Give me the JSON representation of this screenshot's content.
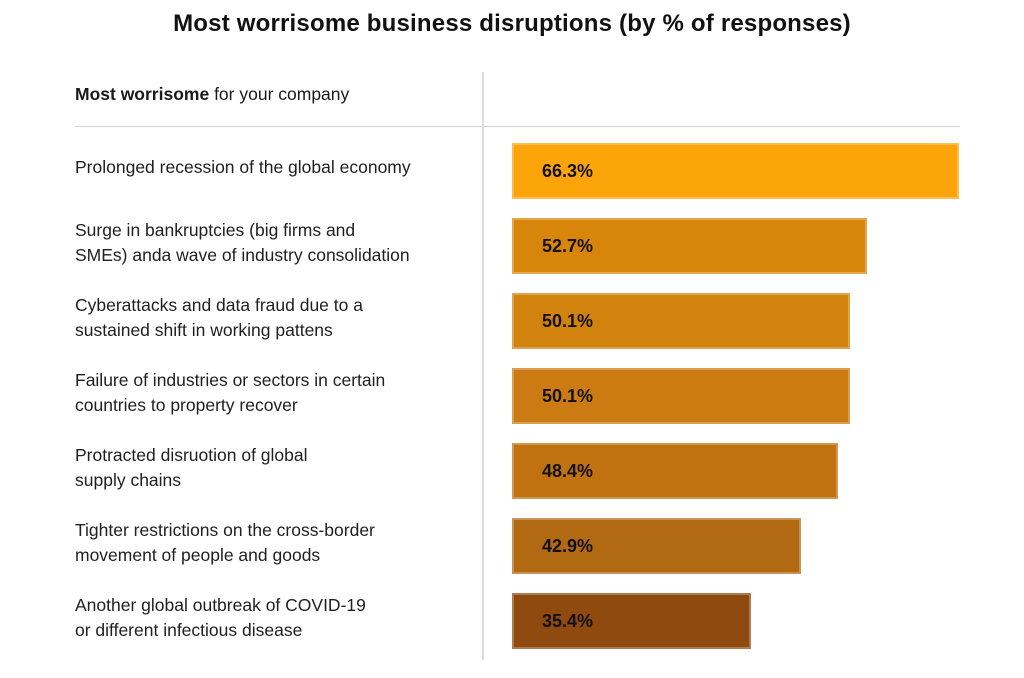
{
  "title": "Most worrisome business disruptions (by % of responses)",
  "header": {
    "bold": "Most worrisome",
    "regular": " for your company"
  },
  "chart_data": {
    "type": "bar",
    "orientation": "horizontal",
    "title": "Most worrisome business disruptions (by % of responses)",
    "categories": [
      "Prolonged recession of the global economy",
      "Surge in bankruptcies (big firms and\nSMEs) anda wave of industry consolidation",
      "Cyberattacks and data fraud due to a\nsustained shift in working pattens",
      "Failure of industries or sectors in certain\ncountries to property recover",
      "Protracted disruotion of global\nsupply chains",
      "Tighter restrictions on the cross-border\nmovement of people and goods",
      "Another global outbreak of COVID-19\nor different infectious disease"
    ],
    "values": [
      66.3,
      52.7,
      50.1,
      50.1,
      48.4,
      42.9,
      35.4
    ],
    "value_labels": [
      "66.3%",
      "52.7%",
      "50.1%",
      "50.1%",
      "48.4%",
      "42.9%",
      "35.4%"
    ],
    "bar_colors": [
      "#FCA50A",
      "#D8860B",
      "#D2830E",
      "#CB7B12",
      "#C07110",
      "#B26A12",
      "#8F4A10"
    ],
    "xlim": [
      0,
      70
    ],
    "grid": false,
    "legend": null,
    "value_label_position": "inside-left",
    "axis_line_color": "#dcdcdc",
    "divider_color": "#d3d3d3"
  }
}
